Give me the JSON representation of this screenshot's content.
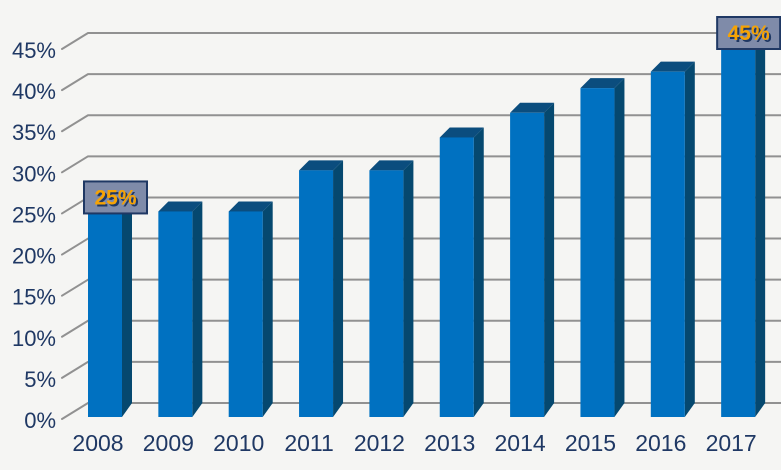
{
  "chart_data": {
    "type": "bar",
    "style": "3d-column",
    "title": "",
    "xlabel": "",
    "ylabel": "",
    "categories": [
      "2008",
      "2009",
      "2010",
      "2011",
      "2012",
      "2013",
      "2014",
      "2015",
      "2016",
      "2017"
    ],
    "values": [
      25,
      25,
      25,
      30,
      30,
      34,
      37,
      40,
      42,
      45
    ],
    "unit": "%",
    "ylim": [
      0,
      45
    ],
    "ytick_step": 5,
    "ytick_labels": [
      "0%",
      "5%",
      "10%",
      "15%",
      "20%",
      "25%",
      "30%",
      "35%",
      "40%",
      "45%"
    ],
    "grid": true,
    "legend": false,
    "annotations": [
      {
        "category": "2008",
        "label": "25%"
      },
      {
        "category": "2017",
        "label": "45%"
      }
    ],
    "colors": {
      "background": "#f5f5f3",
      "gridline": "#919191",
      "axis_text": "#1f3864",
      "bar_front": "#0071c1",
      "bar_top": "#0b4d7e",
      "bar_side": "#05486f",
      "annotation_bg": "#7f8ba9",
      "annotation_border": "#1f3864",
      "annotation_text": "#f6a303",
      "annotation_text_shadow": "#1f3864"
    }
  }
}
